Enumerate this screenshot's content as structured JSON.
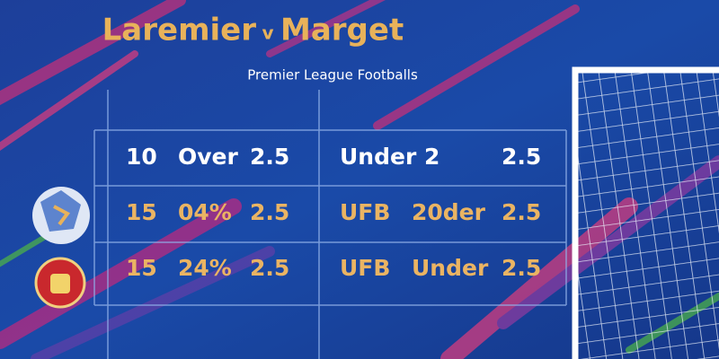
{
  "header": {
    "title_left": "Laremier",
    "title_mid": "v",
    "title_right": "Marget",
    "subtitle": "Premier League Footballs"
  },
  "table": {
    "rows": [
      [
        "10",
        "Over",
        "2.5",
        "Under 2",
        "2.5"
      ],
      [
        "15",
        "04%",
        "2.5",
        "UFB",
        "20der",
        "2.5"
      ],
      [
        "15",
        "24%",
        "2.5",
        "UFB",
        "Under",
        "2.5"
      ]
    ]
  }
}
